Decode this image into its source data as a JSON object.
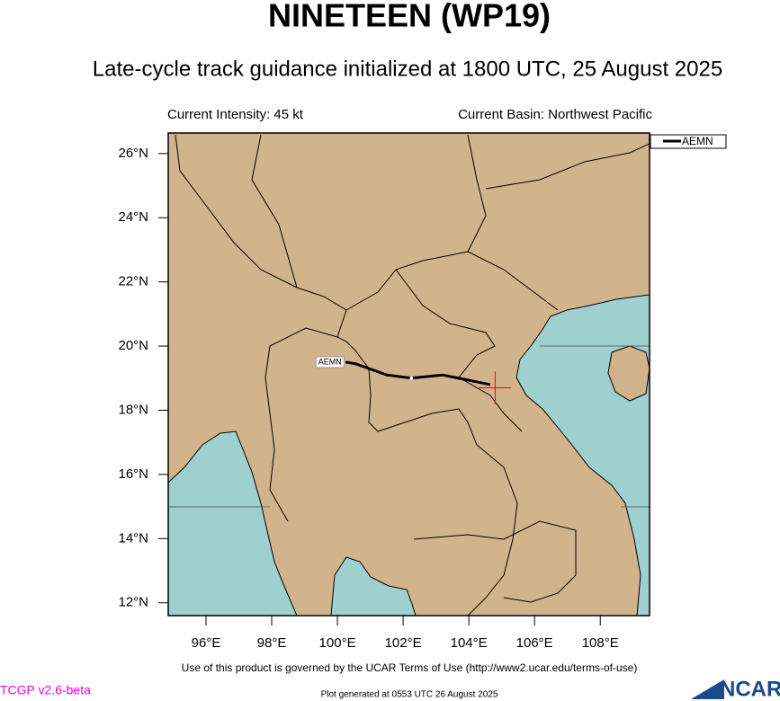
{
  "map": {
    "title": "NINETEEN (WP19)",
    "subtitle": "Late-cycle track guidance initialized at 1800 UTC, 25 August 2025",
    "intensity": "Current Intensity: 45 kt",
    "basin": "Current Basin: Northwest Pacific",
    "lonlim": [
      94.85,
      109.5
    ],
    "latlim": [
      11.6,
      26.64
    ],
    "lonticks": [
      {
        "value": 96,
        "label": "96°E"
      },
      {
        "value": 98,
        "label": "98°E"
      },
      {
        "value": 100,
        "label": "100°E"
      },
      {
        "value": 102,
        "label": "102°E"
      },
      {
        "value": 104,
        "label": "104°E"
      },
      {
        "value": 106,
        "label": "106°E"
      },
      {
        "value": 108,
        "label": "108°E"
      }
    ],
    "latticks": [
      {
        "value": 12,
        "label": "12°N"
      },
      {
        "value": 14,
        "label": "14°N"
      },
      {
        "value": 16,
        "label": "16°N"
      },
      {
        "value": 18,
        "label": "18°N"
      },
      {
        "value": 20,
        "label": "20°N"
      },
      {
        "value": 22,
        "label": "22°N"
      },
      {
        "value": 24,
        "label": "24°N"
      },
      {
        "value": 26,
        "label": "26°N"
      }
    ],
    "tracks": [
      {
        "name": "AEMN",
        "color": "#000000",
        "lon": [
          100.25,
          100.55,
          101.5,
          102.25,
          103.2,
          104.65
        ],
        "lat": [
          19.5,
          19.45,
          19.1,
          19.0,
          19.1,
          18.8
        ]
      }
    ],
    "current_position": {
      "lon": 104.8,
      "lat": 18.7,
      "color": "#ff0000"
    },
    "terms": "Use of this product is governed by the UCAR Terms of Use (http://www2.ucar.edu/terms-of-use)",
    "version": "TCGP v2.6-beta",
    "generated": "Plot generated at 0553 UTC   26 August 2025",
    "logo": "NCAR"
  }
}
